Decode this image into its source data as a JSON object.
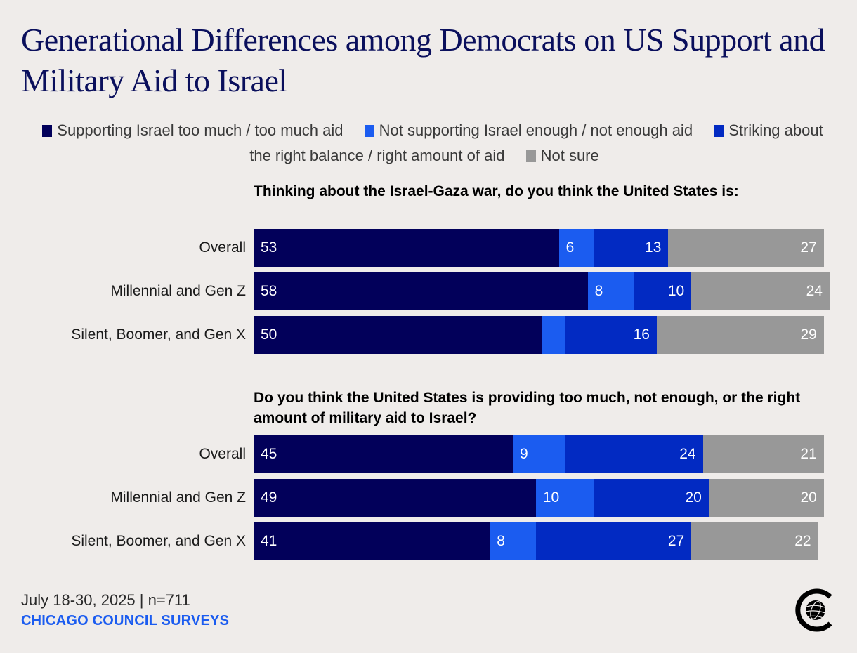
{
  "title": "Generational Differences among Democrats on US Support and Military Aid to Israel",
  "legend": [
    {
      "label": "Supporting Israel too much / too much aid",
      "color": "#02005a"
    },
    {
      "label": "Not supporting Israel enough / not enough aid",
      "color": "#1b5cf0"
    },
    {
      "label": "Striking about the right balance / right amount of aid",
      "color": "#022ac2"
    },
    {
      "label": "Not sure",
      "color": "#989898"
    }
  ],
  "footer": {
    "date_n": "July 18-30, 2025 | n=711",
    "brand": "CHICAGO COUNCIL SURVEYS",
    "logo_icon": "globe-c-logo-icon"
  },
  "chart_data": [
    {
      "type": "bar",
      "orientation": "horizontal-stacked",
      "title": "Thinking about the Israel-Gaza war, do you think the United States is:",
      "categories": [
        "Overall",
        "Millennial and Gen Z",
        "Silent, Boomer, and Gen X"
      ],
      "series": [
        {
          "name": "Supporting Israel too much / too much aid",
          "values": [
            53,
            58,
            50
          ],
          "labels": [
            "53",
            "58",
            "50"
          ]
        },
        {
          "name": "Not supporting Israel enough / not enough aid",
          "values": [
            6,
            8,
            4
          ],
          "labels": [
            "6",
            "8",
            ""
          ]
        },
        {
          "name": "Striking about the right balance / right amount of aid",
          "values": [
            13,
            10,
            16
          ],
          "labels": [
            "13",
            "10",
            "16"
          ]
        },
        {
          "name": "Not sure",
          "values": [
            27,
            24,
            29
          ],
          "labels": [
            "27",
            "24",
            "29"
          ]
        }
      ],
      "unit": "percent",
      "xlim": [
        0,
        100
      ]
    },
    {
      "type": "bar",
      "orientation": "horizontal-stacked",
      "title": "Do you think the United States is providing too much, not enough, or the right amount of military aid to Israel?",
      "categories": [
        "Overall",
        "Millennial and Gen Z",
        "Silent, Boomer, and Gen X"
      ],
      "series": [
        {
          "name": "Supporting Israel too much / too much aid",
          "values": [
            45,
            49,
            41
          ],
          "labels": [
            "45",
            "49",
            "41"
          ]
        },
        {
          "name": "Not supporting Israel enough / not enough aid",
          "values": [
            9,
            10,
            8
          ],
          "labels": [
            "9",
            "10",
            "8"
          ]
        },
        {
          "name": "Striking about the right balance / right amount of aid",
          "values": [
            24,
            20,
            27
          ],
          "labels": [
            "24",
            "20",
            "27"
          ]
        },
        {
          "name": "Not sure",
          "values": [
            21,
            20,
            22
          ],
          "labels": [
            "21",
            "20",
            "22"
          ]
        }
      ],
      "unit": "percent",
      "xlim": [
        0,
        100
      ]
    }
  ]
}
